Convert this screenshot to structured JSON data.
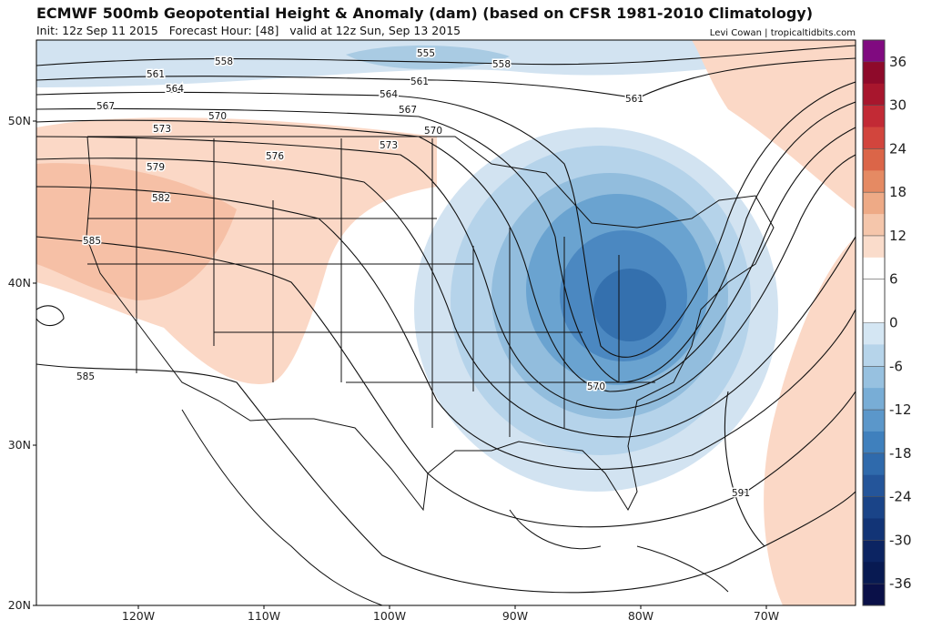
{
  "header": {
    "title": "ECMWF 500mb Geopotential Height & Anomaly (dam) (based on CFSR 1981-2010 Climatology)",
    "run": "Init: 12z Sep 11 2015   Forecast Hour: [48]   valid at 12z Sun, Sep 13 2015",
    "credit": "Levi Cowan | tropicaltidbits.com"
  },
  "map": {
    "lat_labels": [
      "50N",
      "40N",
      "30N",
      "20N"
    ],
    "lon_labels": [
      "120W",
      "110W",
      "100W",
      "90W",
      "80W",
      "70W"
    ],
    "contour_labels": [
      "558",
      "555",
      "558",
      "561",
      "564",
      "561",
      "564",
      "567",
      "567",
      "570",
      "570",
      "561",
      "573",
      "573",
      "576",
      "579",
      "582",
      "585",
      "585",
      "570",
      "591"
    ]
  },
  "colorbar": {
    "labels": [
      "36",
      "30",
      "24",
      "18",
      "12",
      "6",
      "0",
      "-6",
      "-12",
      "-18",
      "-24",
      "-30",
      "-36"
    ]
  }
}
